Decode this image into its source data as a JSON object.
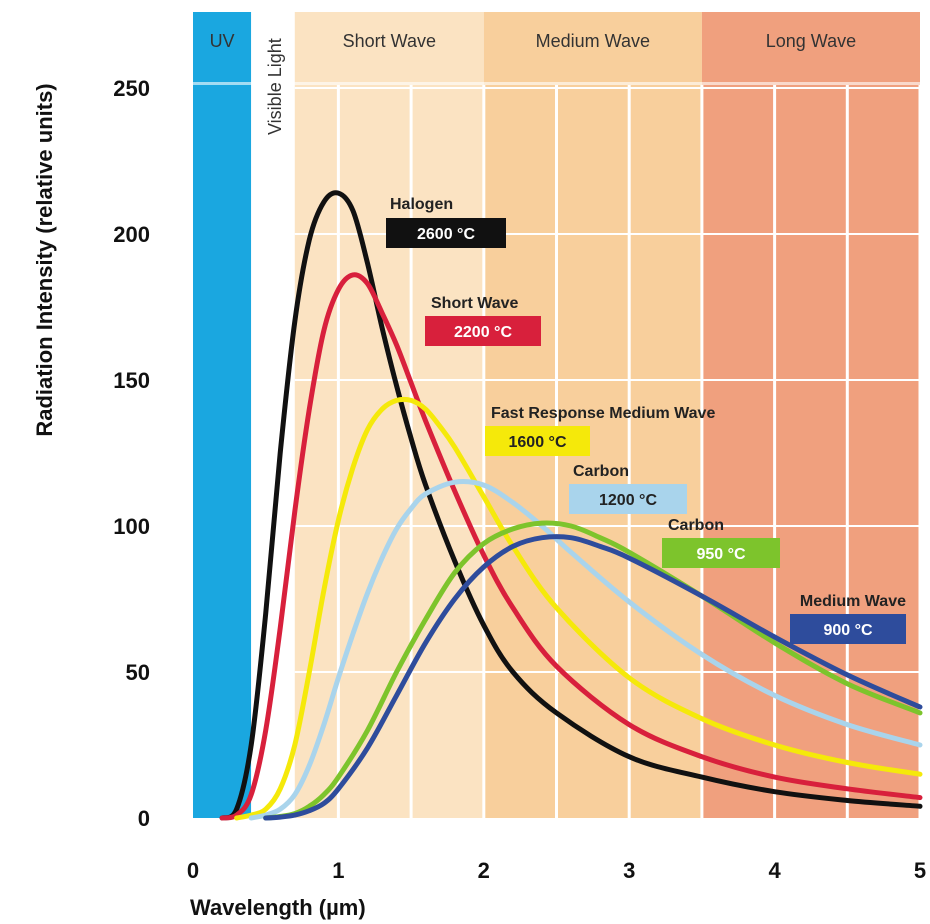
{
  "chart_data": {
    "type": "line",
    "xlabel": "Wavelength (µm)",
    "ylabel": "Radiation Intensity (relative units)",
    "xlim": [
      0,
      5
    ],
    "ylim": [
      0,
      250
    ],
    "x_ticks": [
      "0",
      "1",
      "2",
      "3",
      "4",
      "5"
    ],
    "y_ticks": [
      "0",
      "50",
      "100",
      "150",
      "200",
      "250"
    ],
    "grid": true,
    "bands": [
      {
        "name": "UV",
        "from": 0,
        "to": 0.4,
        "color": "#1aa7e0"
      },
      {
        "name": "Visible Light",
        "from": 0.4,
        "to": 0.7,
        "color": "#ffffff"
      },
      {
        "name": "Short Wave",
        "from": 0.7,
        "to": 2.0,
        "color": "#fbe3c2"
      },
      {
        "name": "Medium Wave",
        "from": 2.0,
        "to": 3.5,
        "color": "#f8cf9c"
      },
      {
        "name": "Long Wave",
        "from": 3.5,
        "to": 5.0,
        "color": "#f0a07e"
      }
    ],
    "series": [
      {
        "name": "Halogen",
        "temp": "2600 °C",
        "color": "#111111",
        "x": [
          0.2,
          0.3,
          0.4,
          0.5,
          0.6,
          0.7,
          0.8,
          0.9,
          1.0,
          1.1,
          1.2,
          1.3,
          1.4,
          1.5,
          1.6,
          1.8,
          2.0,
          2.2,
          2.5,
          3.0,
          3.5,
          4.0,
          4.5,
          5.0
        ],
        "y": [
          0,
          3,
          25,
          70,
          125,
          170,
          198,
          211,
          214,
          208,
          190,
          168,
          148,
          130,
          114,
          88,
          66,
          50,
          36,
          21,
          14,
          9,
          6,
          4
        ]
      },
      {
        "name": "Short Wave",
        "temp": "2200 °C",
        "color": "#d8203c",
        "x": [
          0.2,
          0.3,
          0.4,
          0.5,
          0.6,
          0.7,
          0.8,
          0.9,
          1.0,
          1.1,
          1.2,
          1.3,
          1.4,
          1.5,
          1.6,
          1.8,
          2.0,
          2.2,
          2.5,
          3.0,
          3.5,
          4.0,
          4.5,
          5.0
        ],
        "y": [
          0,
          1,
          8,
          30,
          65,
          105,
          140,
          167,
          181,
          186,
          183,
          173,
          162,
          149,
          136,
          112,
          90,
          72,
          52,
          32,
          21,
          14,
          10,
          7
        ]
      },
      {
        "name": "Fast Response Medium Wave",
        "temp": "1600 °C",
        "color": "#f5e90a",
        "x": [
          0.3,
          0.4,
          0.5,
          0.6,
          0.7,
          0.8,
          0.9,
          1.0,
          1.1,
          1.2,
          1.3,
          1.4,
          1.5,
          1.6,
          1.7,
          1.8,
          2.0,
          2.2,
          2.5,
          3.0,
          3.5,
          4.0,
          4.5,
          5.0
        ],
        "y": [
          0,
          1,
          3,
          10,
          25,
          50,
          78,
          102,
          120,
          133,
          140,
          143,
          143,
          140,
          134,
          127,
          110,
          93,
          72,
          48,
          34,
          25,
          19,
          15
        ]
      },
      {
        "name": "Carbon",
        "temp": "1200 °C",
        "color": "#a9d4ec",
        "x": [
          0.4,
          0.5,
          0.6,
          0.7,
          0.8,
          0.9,
          1.0,
          1.1,
          1.2,
          1.3,
          1.4,
          1.5,
          1.6,
          1.8,
          2.0,
          2.2,
          2.4,
          2.6,
          3.0,
          3.5,
          4.0,
          4.5,
          5.0
        ],
        "y": [
          0,
          1,
          3,
          8,
          18,
          32,
          48,
          63,
          77,
          89,
          99,
          106,
          111,
          115,
          114,
          108,
          100,
          91,
          74,
          56,
          42,
          32,
          25
        ]
      },
      {
        "name": "Carbon",
        "temp": "950 °C",
        "color": "#7dc42c",
        "x": [
          0.5,
          0.6,
          0.7,
          0.8,
          0.9,
          1.0,
          1.2,
          1.4,
          1.6,
          1.8,
          2.0,
          2.2,
          2.4,
          2.6,
          2.8,
          3.0,
          3.5,
          4.0,
          4.5,
          5.0
        ],
        "y": [
          0,
          0.5,
          1.5,
          4,
          8,
          14,
          30,
          50,
          68,
          84,
          94,
          99,
          101,
          100,
          96,
          91,
          76,
          60,
          46,
          36
        ]
      },
      {
        "name": "Medium Wave",
        "temp": "900 °C",
        "color": "#2e4c9c",
        "x": [
          0.5,
          0.6,
          0.7,
          0.8,
          0.9,
          1.0,
          1.2,
          1.4,
          1.6,
          1.8,
          2.0,
          2.2,
          2.4,
          2.6,
          2.8,
          3.0,
          3.5,
          4.0,
          4.5,
          5.0
        ],
        "y": [
          0,
          0.3,
          1,
          2.5,
          5,
          10,
          24,
          42,
          60,
          75,
          86,
          93,
          96,
          96,
          93,
          89,
          76,
          62,
          49,
          38
        ]
      }
    ],
    "labels": [
      {
        "name": "Halogen",
        "temp": "2600 °C",
        "color": "#111111",
        "temp_text": "#ffffff"
      },
      {
        "name": "Short Wave",
        "temp": "2200 °C",
        "color": "#d8203c",
        "temp_text": "#ffffff"
      },
      {
        "name": "Fast Response Medium Wave",
        "temp": "1600 °C",
        "color": "#f5e90a",
        "temp_text": "#222222"
      },
      {
        "name": "Carbon",
        "temp": "1200 °C",
        "color": "#a9d4ec",
        "temp_text": "#222222"
      },
      {
        "name": "Carbon",
        "temp": "950 °C",
        "color": "#7dc42c",
        "temp_text": "#ffffff"
      },
      {
        "name": "Medium Wave",
        "temp": "900 °C",
        "color": "#2e4c9c",
        "temp_text": "#ffffff"
      }
    ]
  }
}
